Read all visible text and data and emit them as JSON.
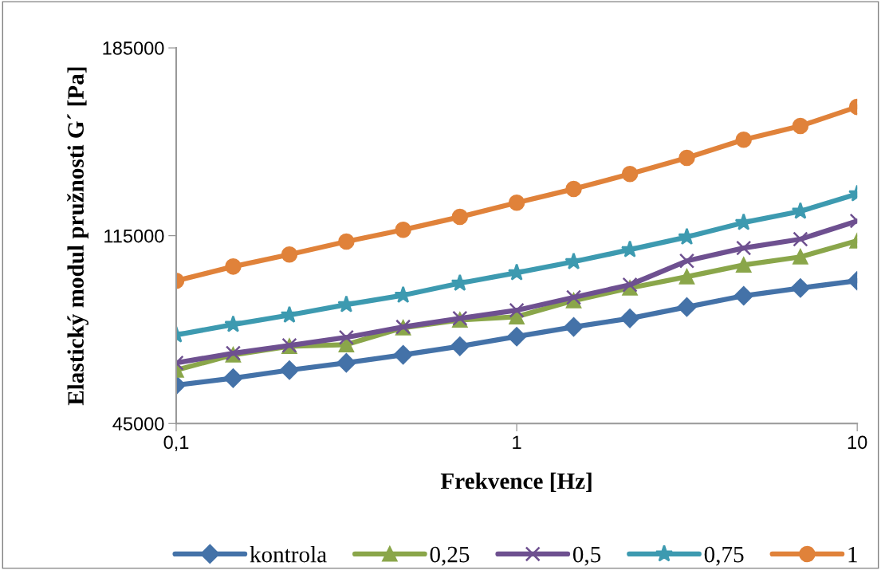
{
  "chart_data": {
    "type": "line",
    "xlabel": "Frekvence [Hz]",
    "ylabel": "Elastický modul pružnosti G´ [Pa]",
    "x": [
      0.1,
      0.147,
      0.215,
      0.316,
      0.464,
      0.681,
      1,
      1.47,
      2.15,
      3.16,
      4.64,
      6.81,
      10
    ],
    "log": "x",
    "xlim": [
      0.1,
      10
    ],
    "xticks": [
      {
        "value": 0.1,
        "label": "0,1"
      },
      1,
      10
    ],
    "ylim": [
      45000,
      185000
    ],
    "yticks": [
      45000,
      115000,
      185000
    ],
    "grid": false,
    "legend": "bottom",
    "line_style": "solid",
    "series": [
      {
        "name": "kontrola",
        "color": "#4472a8",
        "marker": "diamond",
        "values": [
          59300,
          61900,
          64900,
          67600,
          70600,
          73800,
          77400,
          81000,
          84200,
          88400,
          92600,
          95500,
          98200
        ]
      },
      {
        "name": "0,25",
        "color": "#8aa64a",
        "marker": "triangle",
        "values": [
          64900,
          70600,
          73800,
          74400,
          80700,
          83600,
          84800,
          90800,
          95500,
          99700,
          104100,
          107100,
          113100
        ]
      },
      {
        "name": "0,5",
        "color": "#6e5090",
        "marker": "cross",
        "values": [
          67600,
          71200,
          74100,
          77100,
          81000,
          84200,
          87200,
          92000,
          96700,
          105600,
          110400,
          113700,
          120500
        ]
      },
      {
        "name": "0,75",
        "color": "#3d9ab0",
        "marker": "star",
        "values": [
          78000,
          81900,
          85400,
          89300,
          92800,
          97300,
          101200,
          105300,
          109800,
          114500,
          119900,
          124100,
          130600
        ]
      },
      {
        "name": "1",
        "color": "#e0823a",
        "marker": "circle",
        "values": [
          98200,
          103500,
          108000,
          112800,
          117200,
          122000,
          127300,
          132400,
          138000,
          144000,
          150800,
          155900,
          163000
        ]
      }
    ]
  }
}
